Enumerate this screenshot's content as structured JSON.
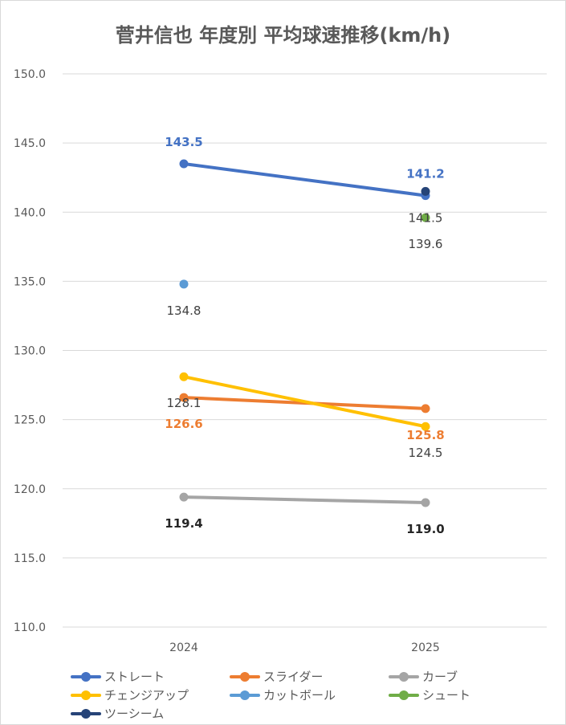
{
  "chart_data": {
    "type": "line",
    "title": "菅井信也 年度別 平均球速推移(km/h)",
    "categories": [
      "2024",
      "2025"
    ],
    "ylim": [
      110,
      150
    ],
    "yticks": [
      "110.0",
      "115.0",
      "120.0",
      "125.0",
      "130.0",
      "135.0",
      "140.0",
      "145.0",
      "150.0"
    ],
    "grid": true,
    "legend_position": "bottom",
    "series": [
      {
        "name": "ストレート",
        "color": "#4472c4",
        "values": [
          143.5,
          141.2
        ],
        "labels": [
          "143.5",
          "141.2"
        ],
        "label_color": "#4472c4"
      },
      {
        "name": "スライダー",
        "color": "#ed7d31",
        "values": [
          126.6,
          125.8
        ],
        "labels": [
          "126.6",
          "125.8"
        ],
        "label_color": "#ed7d31"
      },
      {
        "name": "カーブ",
        "color": "#a5a5a5",
        "values": [
          119.4,
          119.0
        ],
        "labels": [
          "119.4",
          "119.0"
        ],
        "label_color": "#262626"
      },
      {
        "name": "チェンジアップ",
        "color": "#ffc000",
        "values": [
          128.1,
          124.5
        ],
        "labels": [
          "128.1",
          "124.5"
        ],
        "label_color": "#404040"
      },
      {
        "name": "カットボール",
        "color": "#5b9bd5",
        "values": [
          134.8,
          null
        ],
        "labels": [
          "134.8",
          ""
        ],
        "label_color": "#404040"
      },
      {
        "name": "シュート",
        "color": "#70ad47",
        "values": [
          null,
          139.6
        ],
        "labels": [
          "",
          "139.6"
        ],
        "label_color": "#404040"
      },
      {
        "name": "ツーシーム",
        "color": "#264478",
        "values": [
          null,
          141.5
        ],
        "labels": [
          "",
          "141.5"
        ],
        "label_color": "#404040"
      }
    ]
  }
}
